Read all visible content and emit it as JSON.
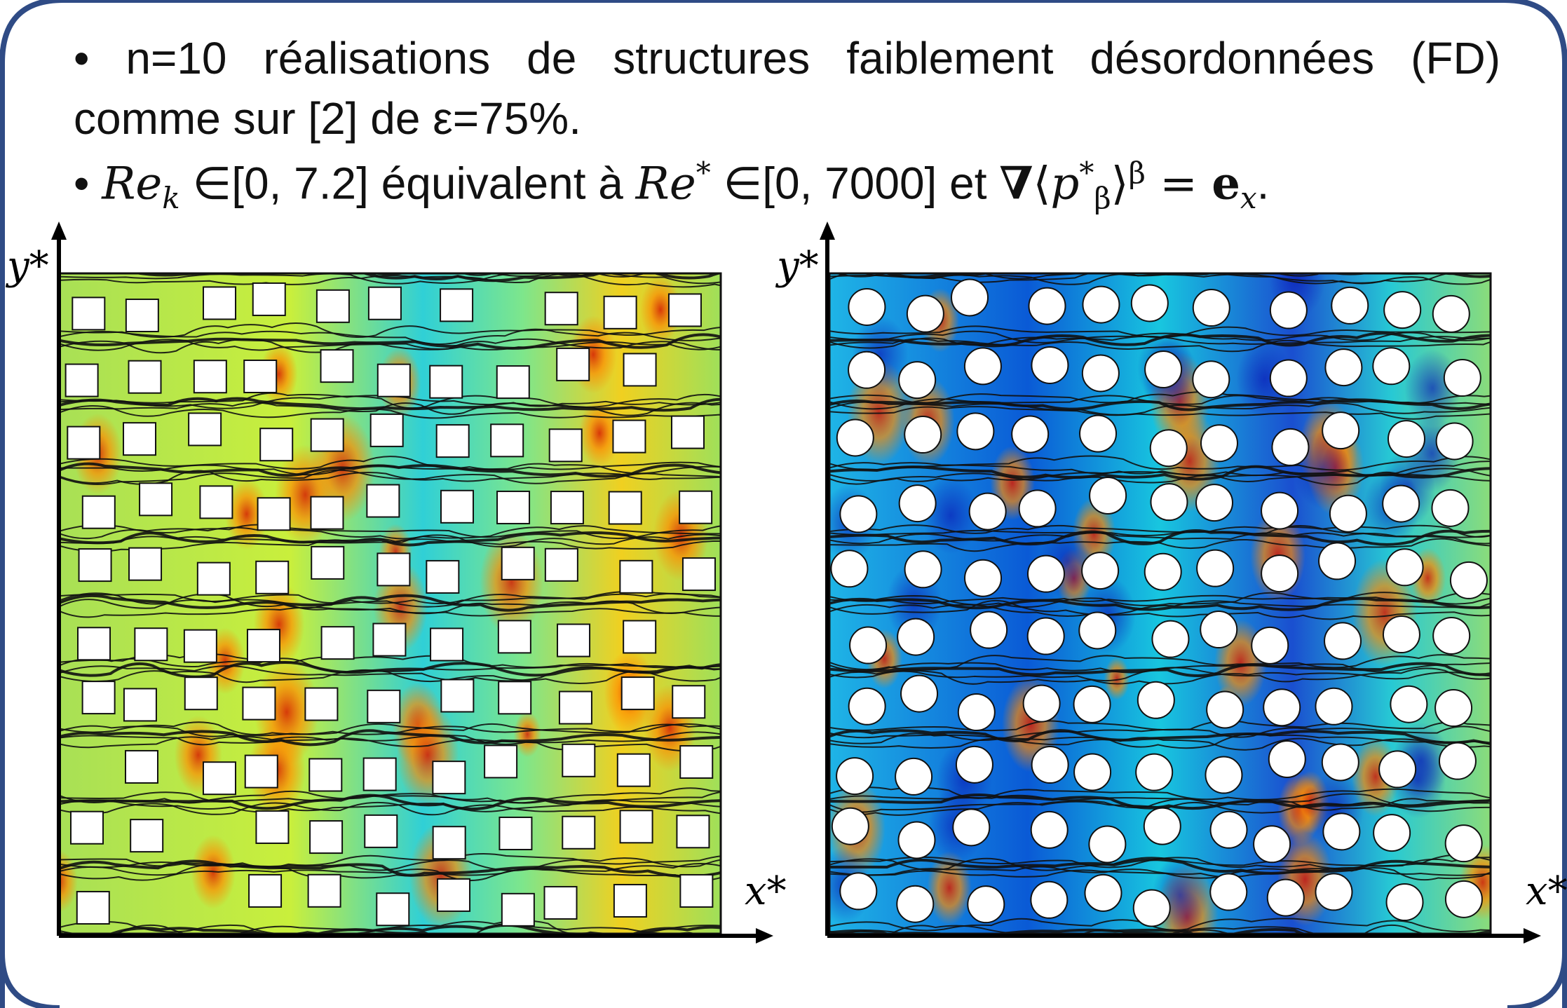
{
  "bullets": {
    "line1": "• n=10 réalisations de structures faiblement désordonnées (FD)",
    "line2": "comme sur [2] de ε=75%.",
    "b2_prefix": "• ",
    "b2_rek": "Re",
    "b2_rek_sub": "k",
    "b2_in": " ∈[0, 7.2] équivalent à ",
    "b2_re": "Re",
    "b2_re_sup": "*",
    "b2_in2": " ∈[0, 7000] et ",
    "b2_nabla": "∇",
    "b2_lang": "⟨",
    "b2_p": "p",
    "b2_p_sup": "*",
    "b2_p_sub": "β",
    "b2_rang": "⟩",
    "b2_beta": "β",
    "b2_eq": " = ",
    "b2_e": "e",
    "b2_e_sub": "x",
    "b2_end": "."
  },
  "plots": {
    "left": {
      "ylabel": "y*",
      "xlabel": "x*",
      "obstacle": "square"
    },
    "right": {
      "ylabel": "y*",
      "xlabel": "x*",
      "obstacle": "circle"
    }
  },
  "colors": {
    "frame": "#2f4b85",
    "low": "#0033cc",
    "mid": "#00c8d8",
    "green": "#9fe05a",
    "high": "#ff8a00",
    "peak": "#d81c00"
  }
}
